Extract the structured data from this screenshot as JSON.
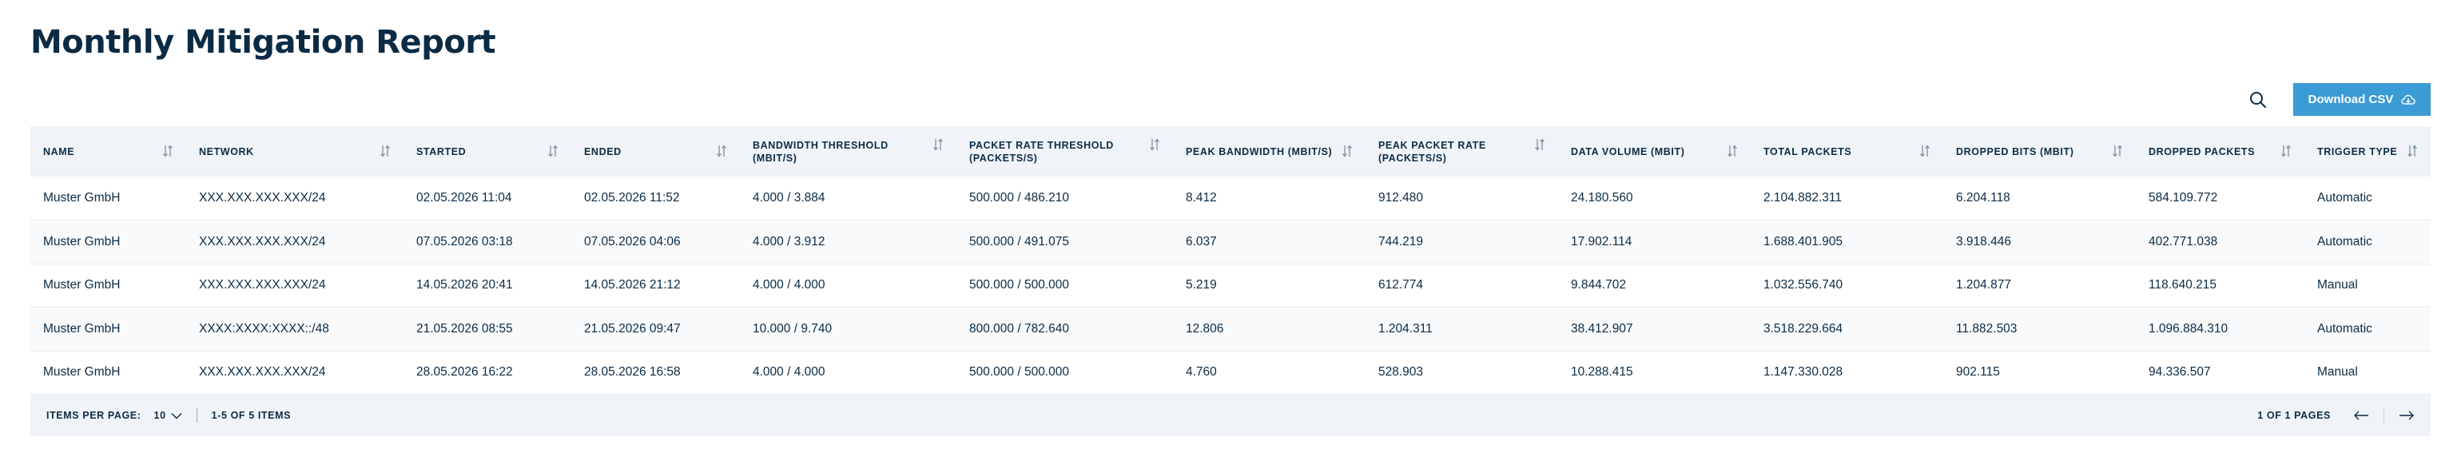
{
  "page": {
    "title": "Monthly Mitigation Report"
  },
  "toolbar": {
    "download_label": "Download CSV"
  },
  "table": {
    "columns": [
      {
        "key": "name",
        "label": "Name"
      },
      {
        "key": "network",
        "label": "Network"
      },
      {
        "key": "started",
        "label": "Started"
      },
      {
        "key": "ended",
        "label": "Ended"
      },
      {
        "key": "bw_threshold",
        "label": "Bandwidth Threshold (Mbit/s)"
      },
      {
        "key": "pr_threshold",
        "label": "Packet Rate Threshold (Packets/s)"
      },
      {
        "key": "peak_bw",
        "label": "Peak Bandwidth (Mbit/s)"
      },
      {
        "key": "peak_pr",
        "label": "Peak Packet Rate (Packets/s)"
      },
      {
        "key": "data_volume",
        "label": "Data Volume (Mbit)"
      },
      {
        "key": "total_packets",
        "label": "Total Packets"
      },
      {
        "key": "dropped_bits",
        "label": "Dropped Bits (Mbit)"
      },
      {
        "key": "dropped_packets",
        "label": "Dropped Packets"
      },
      {
        "key": "trigger_type",
        "label": "Trigger Type"
      }
    ],
    "rows": [
      [
        "Muster GmbH",
        "XXX.XXX.XXX.XXX/24",
        "02.05.2026 11:04",
        "02.05.2026 11:52",
        "4.000 / 3.884",
        "500.000 / 486.210",
        "8.412",
        "912.480",
        "24.180.560",
        "2.104.882.311",
        "6.204.118",
        "584.109.772",
        "Automatic"
      ],
      [
        "Muster GmbH",
        "XXX.XXX.XXX.XXX/24",
        "07.05.2026 03:18",
        "07.05.2026 04:06",
        "4.000 / 3.912",
        "500.000 / 491.075",
        "6.037",
        "744.219",
        "17.902.114",
        "1.688.401.905",
        "3.918.446",
        "402.771.038",
        "Automatic"
      ],
      [
        "Muster GmbH",
        "XXX.XXX.XXX.XXX/24",
        "14.05.2026 20:41",
        "14.05.2026 21:12",
        "4.000 / 4.000",
        "500.000 / 500.000",
        "5.219",
        "612.774",
        "9.844.702",
        "1.032.556.740",
        "1.204.877",
        "118.640.215",
        "Manual"
      ],
      [
        "Muster GmbH",
        "XXXX:XXXX:XXXX::/48",
        "21.05.2026 08:55",
        "21.05.2026 09:47",
        "10.000 / 9.740",
        "800.000 / 782.640",
        "12.806",
        "1.204.311",
        "38.412.907",
        "3.518.229.664",
        "11.882.503",
        "1.096.884.310",
        "Automatic"
      ],
      [
        "Muster GmbH",
        "XXX.XXX.XXX.XXX/24",
        "28.05.2026 16:22",
        "28.05.2026 16:58",
        "4.000 / 4.000",
        "500.000 / 500.000",
        "4.760",
        "528.903",
        "10.288.415",
        "1.147.330.028",
        "902.115",
        "94.336.507",
        "Manual"
      ]
    ]
  },
  "footer": {
    "items_per_page_label": "Items per page:",
    "items_per_page_value": "10",
    "range_text": "1-5 of 5 items",
    "pages_text": "1 of 1 pages"
  },
  "colors": {
    "accent": "#3a9bd5",
    "text": "#0b2b45",
    "header_bg": "#f0f4f8"
  }
}
